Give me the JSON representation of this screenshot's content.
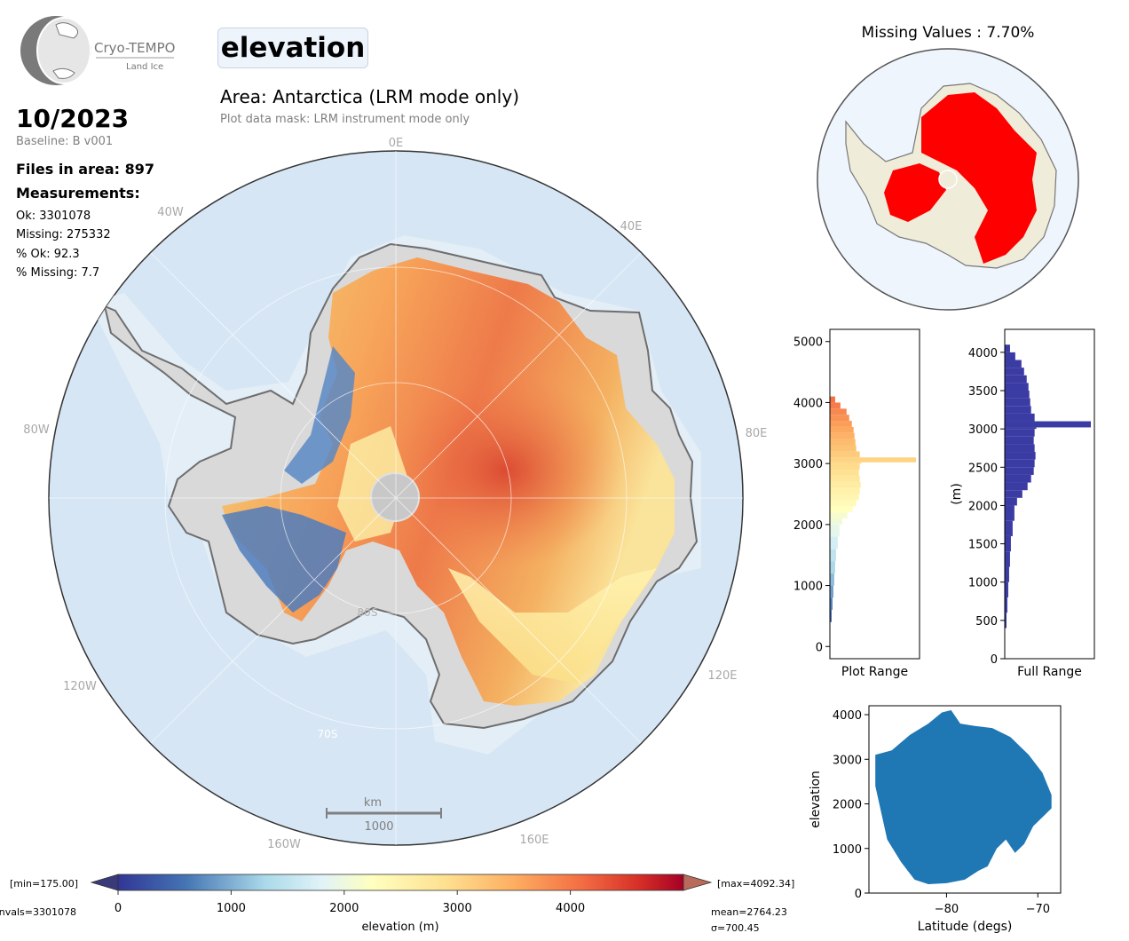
{
  "logo": {
    "name": "Cryo-TEMPO",
    "subtitle": "Land Ice"
  },
  "title": "elevation",
  "area": "Area: Antarctica (LRM mode only)",
  "mask": "Plot data mask: LRM instrument mode only",
  "date": "10/2023",
  "baseline": "Baseline: B v001",
  "files": "Files in area: 897",
  "measurements": {
    "heading": "Measurements:",
    "ok": "Ok: 3301078",
    "missing": "Missing: 275332",
    "pct_ok": "% Ok: 92.3",
    "pct_missing": "% Missing: 7.7"
  },
  "missing_title": "Missing Values : 7.70%",
  "map": {
    "lon_labels": [
      "0E",
      "40E",
      "80E",
      "120E",
      "160E",
      "160W",
      "120W",
      "80W",
      "40W"
    ],
    "lat_labels": [
      "80S",
      "70S"
    ],
    "scale_bar": {
      "unit": "km",
      "value": "1000"
    }
  },
  "colorbar": {
    "min_label": "[min=175.00]",
    "max_label": "[max=4092.34]",
    "nvals_label": "nvals=3301078",
    "mean_label": "mean=2764.23",
    "sigma_label": "σ=700.45",
    "ticks": [
      "0",
      "1000",
      "2000",
      "3000",
      "4000"
    ],
    "label": "elevation (m)",
    "range": [
      0,
      5000
    ]
  },
  "colors": {
    "ocean": "#d6e6f4",
    "land": "#d9d9d9",
    "missing": "#ff0000",
    "hist_full": "#3b3ba4",
    "scatter": "#1f77b4"
  },
  "chart_data": [
    {
      "type": "bar",
      "orientation": "horizontal",
      "xlabel": "Plot Range",
      "yticks": [
        "0",
        "1000",
        "2000",
        "3000",
        "4000",
        "5000"
      ],
      "ylim": [
        -200,
        5200
      ],
      "bins": [
        400,
        600,
        800,
        1000,
        1200,
        1400,
        1600,
        1800,
        2000,
        2100,
        2200,
        2300,
        2400,
        2500,
        2600,
        2700,
        2800,
        2900,
        3000,
        3020,
        3100,
        3200,
        3300,
        3400,
        3500,
        3600,
        3700,
        3800,
        3900,
        4000
      ],
      "counts": [
        2,
        3,
        4,
        5,
        6,
        7,
        9,
        11,
        14,
        20,
        26,
        30,
        33,
        34,
        35,
        34,
        33,
        34,
        36,
        98,
        34,
        30,
        29,
        28,
        27,
        25,
        22,
        19,
        12,
        6
      ]
    },
    {
      "type": "bar",
      "orientation": "horizontal",
      "xlabel": "Full Range",
      "ylabel": "(m)",
      "yticks": [
        "0",
        "500",
        "1000",
        "1500",
        "2000",
        "2500",
        "3000",
        "3500",
        "4000"
      ],
      "ylim": [
        0,
        4300
      ],
      "bins": [
        400,
        600,
        800,
        1000,
        1200,
        1400,
        1600,
        1800,
        2000,
        2100,
        2200,
        2300,
        2400,
        2500,
        2600,
        2700,
        2800,
        2900,
        3000,
        3020,
        3100,
        3200,
        3300,
        3400,
        3500,
        3600,
        3700,
        3800,
        3900,
        4000
      ],
      "counts": [
        2,
        3,
        4,
        5,
        6,
        7,
        9,
        11,
        14,
        20,
        26,
        30,
        33,
        34,
        35,
        34,
        33,
        34,
        36,
        98,
        34,
        30,
        29,
        28,
        27,
        25,
        22,
        19,
        12,
        6
      ]
    },
    {
      "type": "scatter",
      "xlabel": "Latitude (degs)",
      "ylabel": "elevation",
      "xticks": [
        "−80",
        "−70"
      ],
      "yticks": [
        "0",
        "1000",
        "2000",
        "3000",
        "4000"
      ],
      "xlim": [
        -88.5,
        -67.5
      ],
      "ylim": [
        0,
        4200
      ],
      "upper_envelope": [
        [
          -87.8,
          3100
        ],
        [
          -86,
          3200
        ],
        [
          -84,
          3550
        ],
        [
          -82,
          3800
        ],
        [
          -80.5,
          4050
        ],
        [
          -79.5,
          4100
        ],
        [
          -78.5,
          3800
        ],
        [
          -77,
          3750
        ],
        [
          -75,
          3700
        ],
        [
          -73,
          3500
        ],
        [
          -71,
          3100
        ],
        [
          -69.5,
          2700
        ],
        [
          -68.5,
          2200
        ]
      ],
      "lower_envelope": [
        [
          -68.5,
          1900
        ],
        [
          -69.5,
          1700
        ],
        [
          -70.5,
          1500
        ],
        [
          -71.5,
          1100
        ],
        [
          -72.5,
          900
        ],
        [
          -73.5,
          1200
        ],
        [
          -74.5,
          1000
        ],
        [
          -75.5,
          600
        ],
        [
          -76.5,
          500
        ],
        [
          -78,
          300
        ],
        [
          -80,
          220
        ],
        [
          -82,
          200
        ],
        [
          -83.5,
          300
        ],
        [
          -85,
          700
        ],
        [
          -86.5,
          1200
        ],
        [
          -87.8,
          2400
        ]
      ]
    }
  ]
}
